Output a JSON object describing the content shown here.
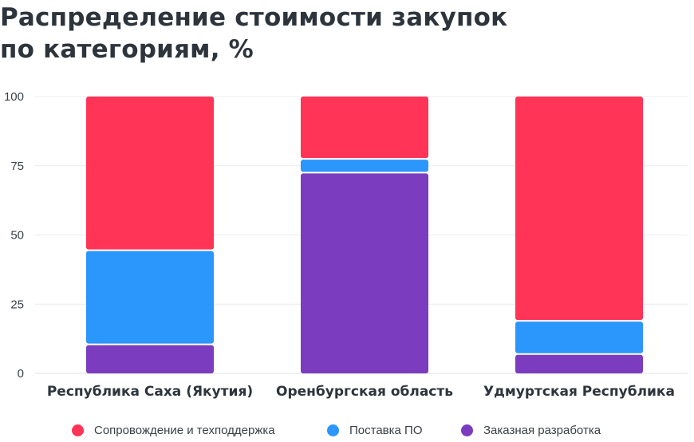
{
  "title_lines": [
    "Распределение стоимости закупок",
    "по категориям, %"
  ],
  "chart_data": {
    "type": "bar",
    "stacked": true,
    "categories": [
      "Республика Саха (Якутия)",
      "Оренбургская область",
      "Удмуртская Республика"
    ],
    "series": [
      {
        "name": "Заказная разработка",
        "color": "#7b3cbf",
        "values": [
          10.5,
          72.5,
          7
        ]
      },
      {
        "name": "Поставка ПО",
        "color": "#2b96fb",
        "values": [
          34,
          5,
          12
        ]
      },
      {
        "name": "Сопровождение и техподдержка",
        "color": "#ff3457",
        "values": [
          55.5,
          22.5,
          81
        ]
      }
    ],
    "ylim": [
      0,
      100
    ],
    "yticks": [
      0,
      25,
      50,
      75,
      100
    ],
    "grid": true,
    "legend_position": "bottom",
    "legend_order": [
      "Сопровождение и техподдержка",
      "Поставка ПО",
      "Заказная разработка"
    ]
  }
}
